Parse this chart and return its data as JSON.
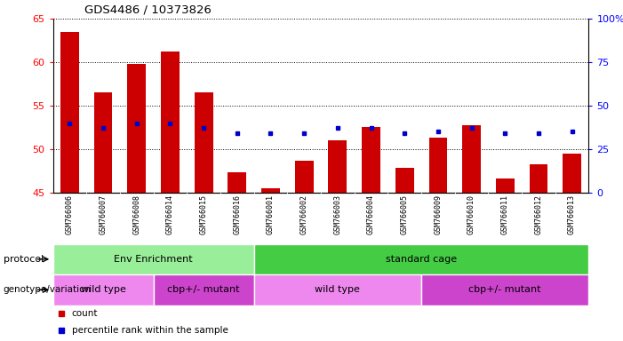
{
  "title": "GDS4486 / 10373826",
  "samples": [
    "GSM766006",
    "GSM766007",
    "GSM766008",
    "GSM766014",
    "GSM766015",
    "GSM766016",
    "GSM766001",
    "GSM766002",
    "GSM766003",
    "GSM766004",
    "GSM766005",
    "GSM766009",
    "GSM766010",
    "GSM766011",
    "GSM766012",
    "GSM766013"
  ],
  "bar_values": [
    63.5,
    56.5,
    59.8,
    61.2,
    56.5,
    47.3,
    45.5,
    48.7,
    51.0,
    52.6,
    47.9,
    51.3,
    52.8,
    46.6,
    48.3,
    49.5
  ],
  "dot_values": [
    53.0,
    52.5,
    53.0,
    53.0,
    52.5,
    51.8,
    51.8,
    51.8,
    52.5,
    52.5,
    51.8,
    52.0,
    52.5,
    51.8,
    51.8,
    52.0
  ],
  "bar_color": "#cc0000",
  "dot_color": "#0000cc",
  "ylim": [
    45,
    65
  ],
  "y_left_ticks": [
    45,
    50,
    55,
    60,
    65
  ],
  "y_right_ticks": [
    0,
    25,
    50,
    75,
    100
  ],
  "y_right_labels": [
    "0",
    "25",
    "50",
    "75",
    "100%"
  ],
  "background_color": "#ffffff",
  "protocol_groups": [
    {
      "text": "Env Enrichment",
      "start": 0,
      "end": 5,
      "color": "#99ee99"
    },
    {
      "text": "standard cage",
      "start": 6,
      "end": 15,
      "color": "#44cc44"
    }
  ],
  "genotype_groups": [
    {
      "text": "wild type",
      "start": 0,
      "end": 2,
      "color": "#ee88ee"
    },
    {
      "text": "cbp+/- mutant",
      "start": 3,
      "end": 5,
      "color": "#cc44cc"
    },
    {
      "text": "wild type",
      "start": 6,
      "end": 10,
      "color": "#ee88ee"
    },
    {
      "text": "cbp+/- mutant",
      "start": 11,
      "end": 15,
      "color": "#cc44cc"
    }
  ],
  "legend_items": [
    {
      "color": "#cc0000",
      "label": "count"
    },
    {
      "color": "#0000cc",
      "label": "percentile rank within the sample"
    }
  ]
}
